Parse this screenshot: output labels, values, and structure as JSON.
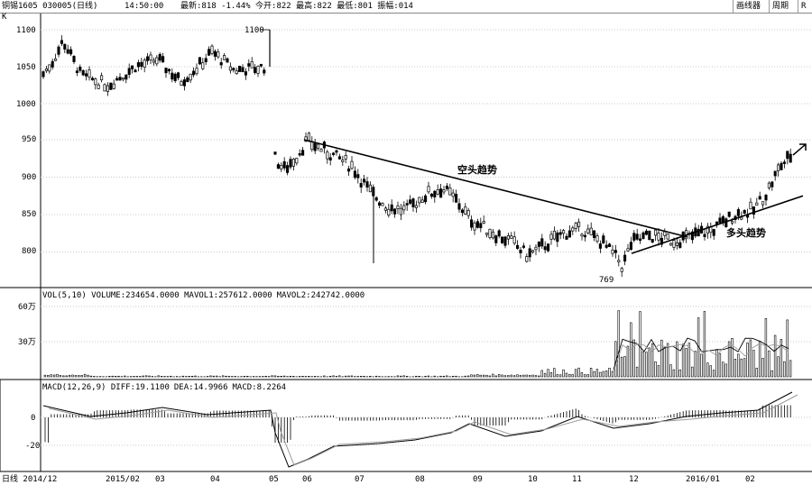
{
  "topbar": {
    "title": "铜锡1605 030005(日线)",
    "time_label": "14:50:00",
    "info": "最新:818 -1.44% 今开:822 最高:822 最低:801 振幅:014",
    "menu_button": "画线器",
    "period_button": "周期",
    "extra_button": "R"
  },
  "chart_data": [
    {
      "type": "candlestick",
      "panel": "price",
      "yticks": [
        {
          "label": "1100",
          "value": 1100
        },
        {
          "label": "1050",
          "value": 1050
        },
        {
          "label": "1000",
          "value": 1000
        },
        {
          "label": "950",
          "value": 950
        },
        {
          "label": "900",
          "value": 900
        },
        {
          "label": "850",
          "value": 850
        },
        {
          "label": "800",
          "value": 800
        }
      ],
      "k_label": "K",
      "price_tag": "1100",
      "low_marker": "769",
      "trendline_resistance": {
        "label": "空头趋势",
        "from": [
          950,
          950
        ],
        "to": [
          820,
          820
        ]
      },
      "trendline_support": {
        "label": "多头趋势",
        "from": [
          798,
          798
        ],
        "to": [
          875,
          875
        ]
      },
      "grid": true
    },
    {
      "type": "bar",
      "panel": "volume",
      "legend": "VOL(5,10) VOLUME:234654.0000 MAVOL1:257612.0000",
      "legend_gray": "MAVOL2:242742.0000",
      "yticks": [
        {
          "label": "60万",
          "value": 600000
        },
        {
          "label": "30万",
          "value": 300000
        }
      ]
    },
    {
      "type": "line",
      "panel": "macd",
      "legend": "MACD(12,26,9) DIFF:19.1100",
      "legend_gray": "DEA:14.9966",
      "legend_tail": "MACD:8.2264",
      "yticks": [
        {
          "label": "0",
          "value": 0
        },
        {
          "label": "-20",
          "value": -20
        }
      ]
    }
  ],
  "xaxis": {
    "labels": [
      "日线 2014/12",
      "2015/02",
      "03",
      "04",
      "05",
      "06",
      "07",
      "08",
      "09",
      "10",
      "11",
      "12",
      "2016/01",
      "02"
    ]
  },
  "colors": {
    "candle": "#000000",
    "grid": "#c8c8c8",
    "mavg2": "#9a9a9a"
  }
}
